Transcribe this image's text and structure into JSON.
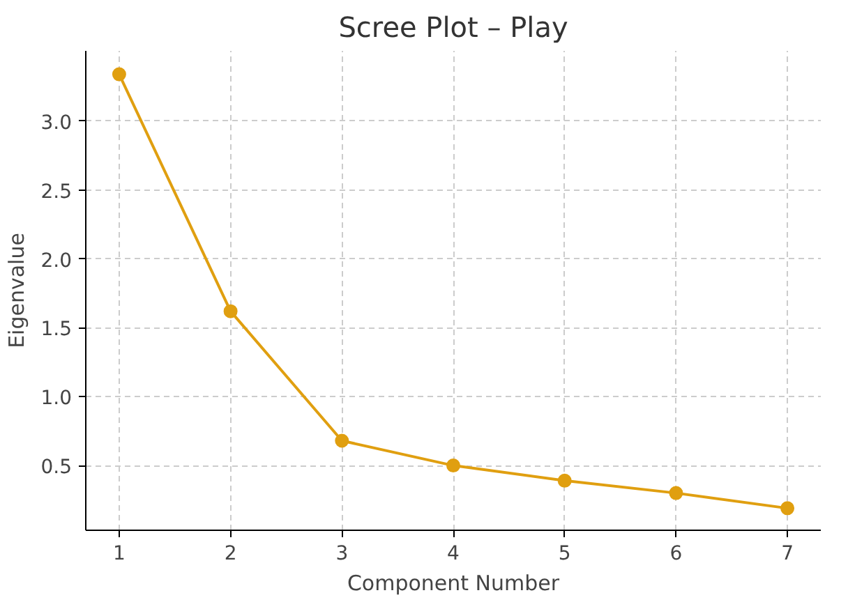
{
  "chart_data": {
    "type": "line",
    "title": "Scree Plot – Play",
    "xlabel": "Component Number",
    "ylabel": "Eigenvalue",
    "x": [
      1,
      2,
      3,
      4,
      5,
      6,
      7
    ],
    "series": [
      {
        "color": "#e09f10",
        "values": [
          3.34,
          1.62,
          0.68,
          0.5,
          0.39,
          0.3,
          0.19
        ]
      }
    ],
    "xlim": [
      0.7,
      7.3
    ],
    "ylim": [
      0.03,
      3.51
    ],
    "xticks": [
      1,
      2,
      3,
      4,
      5,
      6,
      7
    ],
    "yticks": [
      0.5,
      {
        "value": 1,
        "label": "1.0"
      },
      1.5,
      {
        "value": 2,
        "label": "2.0"
      },
      2.5,
      {
        "value": 3,
        "label": "3.0"
      }
    ],
    "grid": true,
    "marker": "circle",
    "line_style": "solid"
  }
}
